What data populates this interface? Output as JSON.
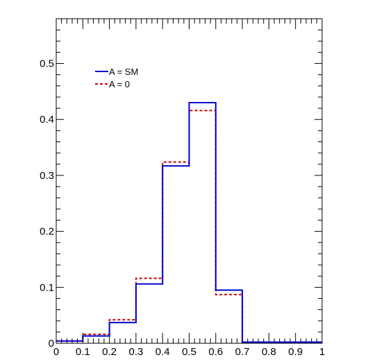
{
  "chart_data": {
    "type": "line",
    "step": true,
    "title": "",
    "xlabel": "",
    "ylabel": "",
    "xlim": [
      0,
      1
    ],
    "ylim": [
      0,
      0.58
    ],
    "bin_edges": [
      0,
      0.1,
      0.2,
      0.3,
      0.4,
      0.5,
      0.6,
      0.7,
      0.8,
      0.9,
      1.0
    ],
    "x_ticks": [
      "0",
      "0.1",
      "0.2",
      "0.3",
      "0.4",
      "0.5",
      "0.6",
      "0.7",
      "0.8",
      "0.9",
      "1"
    ],
    "y_ticks": [
      "0",
      "0.1",
      "0.2",
      "0.3",
      "0.4",
      "0.5"
    ],
    "legend_position": "top-left",
    "series": [
      {
        "name": "A = SM",
        "color": "#0000cc",
        "style": "solid",
        "values": [
          0.004,
          0.013,
          0.037,
          0.106,
          0.317,
          0.43,
          0.095,
          0.002,
          0.002,
          0.002
        ]
      },
      {
        "name": "A = 0",
        "color": "#cc0000",
        "style": "dashed",
        "values": [
          0.004,
          0.016,
          0.042,
          0.116,
          0.324,
          0.416,
          0.087,
          0.002,
          0.002,
          0.002
        ]
      }
    ]
  }
}
